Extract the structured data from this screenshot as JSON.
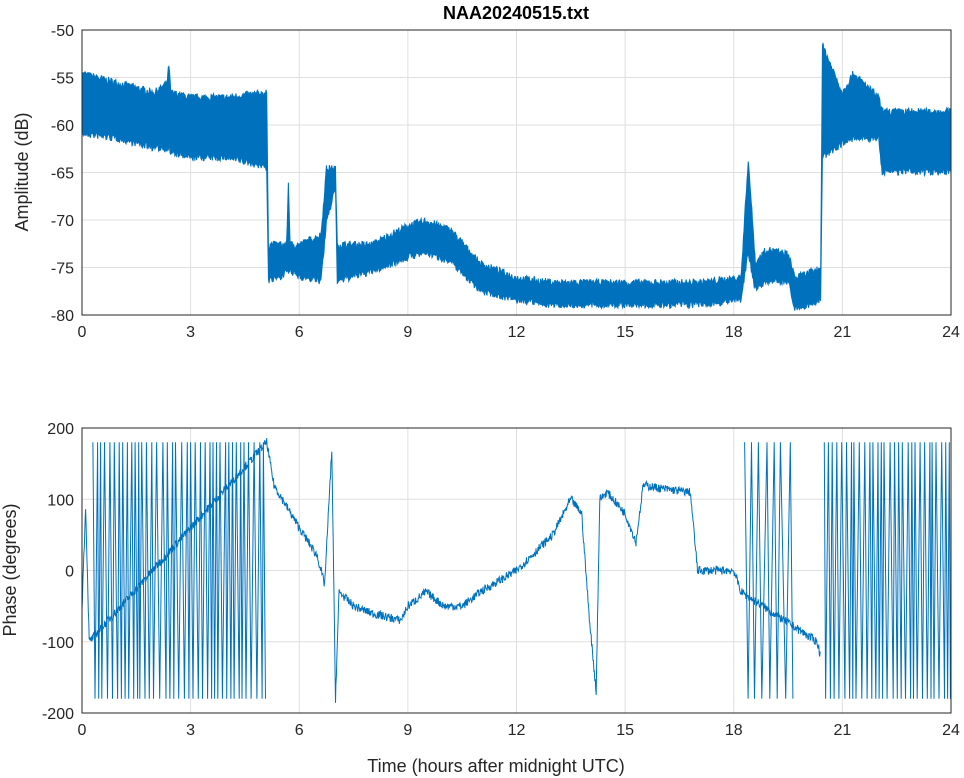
{
  "chart_data": [
    {
      "type": "area",
      "title": "NAA20240515.txt",
      "xlabel": "",
      "ylabel": "Amplitude (dB)",
      "xlim": [
        0,
        24
      ],
      "ylim": [
        -80,
        -50
      ],
      "xticks": [
        0,
        3,
        6,
        9,
        12,
        15,
        18,
        21,
        24
      ],
      "yticks": [
        -80,
        -75,
        -70,
        -65,
        -60,
        -55,
        -50
      ],
      "grid": true,
      "color": "#0072BD",
      "envelope": [
        [
          0,
          -60.5,
          -55
        ],
        [
          1,
          -61,
          -56
        ],
        [
          2,
          -62,
          -57
        ],
        [
          2.35,
          -62,
          -56
        ],
        [
          2.4,
          -62,
          -54
        ],
        [
          2.45,
          -62.5,
          -57
        ],
        [
          3,
          -63,
          -57.5
        ],
        [
          4,
          -63,
          -57.5
        ],
        [
          5.1,
          -64,
          -57
        ],
        [
          5.15,
          -76,
          -73
        ],
        [
          5.5,
          -75.5,
          -73
        ],
        [
          5.65,
          -75,
          -73
        ],
        [
          5.7,
          -75,
          -66.5
        ],
        [
          5.75,
          -75,
          -73
        ],
        [
          6,
          -75.5,
          -73
        ],
        [
          6.6,
          -76,
          -72
        ],
        [
          6.75,
          -70,
          -65
        ],
        [
          7.0,
          -66,
          -65
        ],
        [
          7.05,
          -76,
          -73
        ],
        [
          8,
          -75,
          -73
        ],
        [
          9,
          -73.5,
          -71
        ],
        [
          9.5,
          -73,
          -70.5
        ],
        [
          10.2,
          -74,
          -71.5
        ],
        [
          11,
          -77,
          -75
        ],
        [
          12,
          -78,
          -76.5
        ],
        [
          13,
          -78.5,
          -77
        ],
        [
          15,
          -78.5,
          -77
        ],
        [
          17,
          -78.5,
          -77
        ],
        [
          18.2,
          -78,
          -76.5
        ],
        [
          18.4,
          -73,
          -64
        ],
        [
          18.6,
          -77,
          -75
        ],
        [
          18.9,
          -76,
          -73.5
        ],
        [
          19.5,
          -76,
          -74
        ],
        [
          19.7,
          -79,
          -76.5
        ],
        [
          20.4,
          -78,
          -75.5
        ],
        [
          20.45,
          -63,
          -52
        ],
        [
          21,
          -61.5,
          -57
        ],
        [
          21.3,
          -61,
          -55
        ],
        [
          22,
          -61,
          -57.5
        ],
        [
          22.1,
          -64.5,
          -59
        ],
        [
          24,
          -64.5,
          -59
        ]
      ]
    },
    {
      "type": "line",
      "title": "",
      "xlabel": "Time (hours after midnight UTC)",
      "ylabel": "Phase (degrees)",
      "xlim": [
        0,
        24
      ],
      "ylim": [
        -200,
        200
      ],
      "xticks": [
        0,
        3,
        6,
        9,
        12,
        15,
        18,
        21,
        24
      ],
      "yticks": [
        -200,
        -100,
        0,
        100,
        200
      ],
      "grid": true,
      "color": "#0072BD",
      "trace": [
        [
          0,
          -50
        ],
        [
          0.1,
          90
        ],
        [
          0.2,
          -100
        ],
        [
          5.1,
          180
        ],
        [
          5.3,
          120
        ],
        [
          6,
          60
        ],
        [
          6.5,
          20
        ],
        [
          6.7,
          -20
        ],
        [
          6.9,
          170
        ],
        [
          7.0,
          -180
        ],
        [
          7.1,
          -30
        ],
        [
          7.5,
          -50
        ],
        [
          8,
          -60
        ],
        [
          8.8,
          -70
        ],
        [
          9,
          -50
        ],
        [
          9.5,
          -30
        ],
        [
          10,
          -50
        ],
        [
          10.5,
          -50
        ],
        [
          11,
          -30
        ],
        [
          12,
          0
        ],
        [
          13,
          50
        ],
        [
          13.5,
          100
        ],
        [
          13.8,
          80
        ],
        [
          14,
          -60
        ],
        [
          14.2,
          -170
        ],
        [
          14.3,
          100
        ],
        [
          14.5,
          110
        ],
        [
          15,
          80
        ],
        [
          15.3,
          40
        ],
        [
          15.5,
          120
        ],
        [
          16,
          115
        ],
        [
          16.8,
          110
        ],
        [
          17.0,
          0
        ],
        [
          17.5,
          0
        ],
        [
          18,
          0
        ],
        [
          18.2,
          -30
        ],
        [
          19.7,
          -80
        ],
        [
          20.3,
          -100
        ],
        [
          20.4,
          -120
        ]
      ],
      "wrap_regions": [
        [
          0.3,
          5.1,
          0.06
        ],
        [
          18.3,
          19.7,
          0.1
        ],
        [
          20.5,
          24,
          0.06
        ]
      ],
      "noise": 12
    }
  ]
}
